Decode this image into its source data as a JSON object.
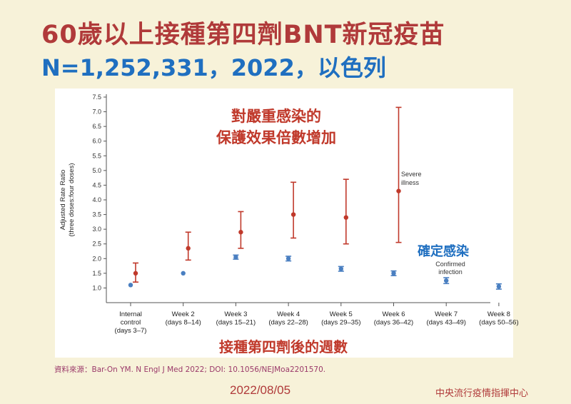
{
  "header": {
    "title": "60歲以上接種第四劑BNT新冠疫苗",
    "subtitle": "N=1,252,331，2022，以色列"
  },
  "annotations": {
    "severe_zh_line1": "對嚴重感染的",
    "severe_zh_line2": "保護效果倍數增加",
    "confirmed_zh": "確定感染",
    "x_title_zh": "接種第四劑後的週數"
  },
  "footer": {
    "source": "資料來源：Bar-On YM. N Engl J Med 2022; DOI: 10.1056/NEJMoa2201570.",
    "date": "2022/08/05",
    "org": "中央流行疫情指揮中心"
  },
  "colors": {
    "severe": "#c0392b",
    "confirmed": "#4a7fc1",
    "title_red": "#b03a3a",
    "title_blue": "#1f6fc0"
  },
  "chart_data": {
    "type": "scatter",
    "ylabel_line1": "Adjusted Rate Ratio",
    "ylabel_line2": "(three doses:four doses)",
    "ylim": [
      0.5,
      7.5
    ],
    "yticks": [
      "7.5",
      "7.0",
      "6.5",
      "6.0",
      "5.5",
      "5.0",
      "4.5",
      "4.0",
      "3.5",
      "3.0",
      "2.5",
      "2.0",
      "1.5",
      "1.0"
    ],
    "categories": [
      [
        "Internal",
        "control",
        "(days 3–7)"
      ],
      [
        "Week 2",
        "(days 8–14)"
      ],
      [
        "Week 3",
        "(days 15–21)"
      ],
      [
        "Week 4",
        "(days 22–28)"
      ],
      [
        "Week 5",
        "(days 29–35)"
      ],
      [
        "Week 6",
        "(days 36–42)"
      ],
      [
        "Week 7",
        "(days 43–49)"
      ],
      [
        "Week 8",
        "(days 50–56)"
      ]
    ],
    "series": [
      {
        "name": "Severe illness",
        "label_lines": [
          "Severe",
          "illness"
        ],
        "values": [
          1.5,
          2.35,
          2.9,
          3.5,
          3.4,
          4.3,
          null,
          null
        ],
        "lower": [
          1.2,
          1.95,
          2.35,
          2.7,
          2.5,
          2.55,
          null,
          null
        ],
        "upper": [
          1.85,
          2.9,
          3.6,
          4.6,
          4.7,
          7.15,
          null,
          null
        ]
      },
      {
        "name": "Confirmed infection",
        "label_lines": [
          "Confirmed",
          "infection"
        ],
        "values": [
          1.1,
          1.5,
          2.05,
          2.0,
          1.65,
          1.5,
          1.25,
          1.05
        ],
        "lower": [
          1.1,
          1.5,
          1.98,
          1.92,
          1.57,
          1.42,
          1.15,
          0.96
        ],
        "upper": [
          1.1,
          1.5,
          2.12,
          2.08,
          1.73,
          1.58,
          1.35,
          1.14
        ]
      }
    ]
  }
}
